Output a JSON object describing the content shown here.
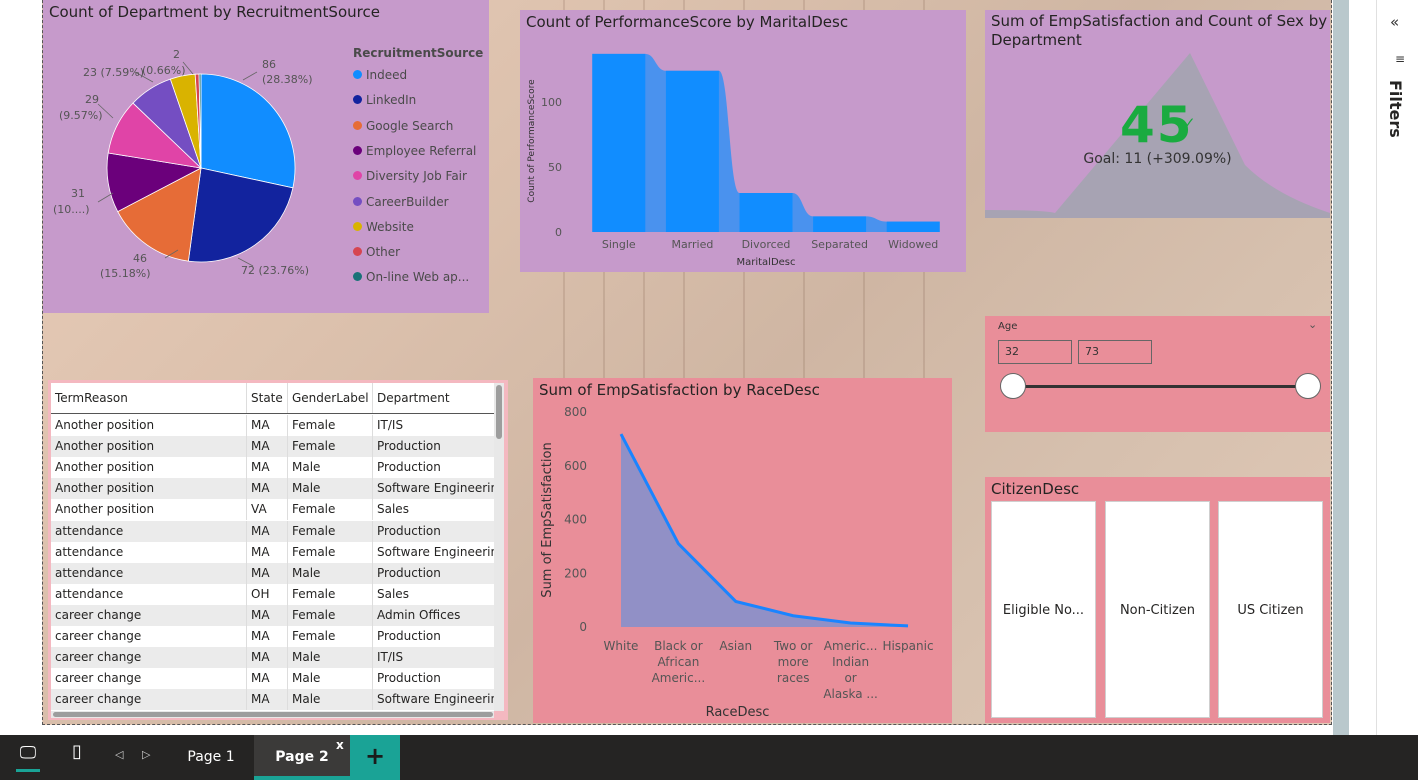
{
  "pie_tile": {
    "title": "Count of Department by RecruitmentSource",
    "legend_title": "RecruitmentSource",
    "labels": [
      "86",
      "(28.38%)",
      "72 (23.76%)",
      "46",
      "(15.18%)",
      "31",
      "(10....)",
      "29",
      "(9.57%)",
      "23 (7.59%)",
      "2",
      "(0.66%)"
    ]
  },
  "bar_tile": {
    "title": "Count of PerformanceScore by MaritalDesc"
  },
  "kpi_tile": {
    "title_line1": "Sum of EmpSatisfaction and Count of Sex by",
    "title_line2": "Department",
    "value": "45",
    "check": "✓",
    "goal": "Goal: 11 (+309.09%)"
  },
  "table": {
    "columns": [
      "TermReason",
      "State",
      "GenderLabel",
      "Department"
    ],
    "rows": [
      [
        "Another position",
        "MA",
        "Female",
        "IT/IS"
      ],
      [
        "Another position",
        "MA",
        "Female",
        "Production"
      ],
      [
        "Another position",
        "MA",
        "Male",
        "Production"
      ],
      [
        "Another position",
        "MA",
        "Male",
        "Software Engineering"
      ],
      [
        "Another position",
        "VA",
        "Female",
        "Sales"
      ],
      [
        "attendance",
        "MA",
        "Female",
        "Production"
      ],
      [
        "attendance",
        "MA",
        "Female",
        "Software Engineering"
      ],
      [
        "attendance",
        "MA",
        "Male",
        "Production"
      ],
      [
        "attendance",
        "OH",
        "Female",
        "Sales"
      ],
      [
        "career change",
        "MA",
        "Female",
        "Admin Offices"
      ],
      [
        "career change",
        "MA",
        "Female",
        "Production"
      ],
      [
        "career change",
        "MA",
        "Male",
        "IT/IS"
      ],
      [
        "career change",
        "MA",
        "Male",
        "Production"
      ],
      [
        "career change",
        "MA",
        "Male",
        "Software Engineering"
      ]
    ]
  },
  "area_tile": {
    "title": "Sum of EmpSatisfaction by RaceDesc"
  },
  "age_slicer": {
    "label": "Age",
    "chevron": "⌄",
    "min": "32",
    "max": "73",
    "range_min": 32,
    "range_max": 73
  },
  "citizen_slicer": {
    "title": "CitizenDesc",
    "options": [
      "Eligible No...",
      "Non-Citizen",
      "US Citizen"
    ]
  },
  "filters_pane": {
    "collapse_icon": "«",
    "filter_icon": "≡",
    "label": "Filters"
  },
  "bottom_bar": {
    "tabs": [
      "Page 1",
      "Page 2"
    ],
    "close": "x",
    "add": "+",
    "prev": "◁",
    "next": "▷",
    "desktop_icon": "🖵",
    "mobile_icon": "▯"
  },
  "colors": {
    "tile_purple": "#c69acb",
    "tile_pink": "#e98e99",
    "accent_teal": "#1aa396",
    "kpi_green": "#1aab40",
    "bar_blue": "#118dff",
    "line_blue": "#1a84ff"
  },
  "chart_data": [
    {
      "type": "pie",
      "title": "Count of Department by RecruitmentSource",
      "legend_title": "RecruitmentSource",
      "legend_placement": "right",
      "categories": [
        "Indeed",
        "LinkedIn",
        "Google Search",
        "Employee Referral",
        "Diversity Job Fair",
        "CareerBuilder",
        "Website",
        "Other",
        "On-line Web ap..."
      ],
      "values": [
        86,
        72,
        46,
        31,
        29,
        23,
        13,
        2,
        1
      ],
      "colors": [
        "#118dff",
        "#12239e",
        "#e66c37",
        "#6b007b",
        "#e044a7",
        "#744ec2",
        "#d9b300",
        "#d64550",
        "#197278"
      ]
    },
    {
      "type": "bar",
      "title": "Count of PerformanceScore by MaritalDesc",
      "xlabel": "MaritalDesc",
      "ylabel": "Count of PerformanceScore",
      "categories": [
        "Single",
        "Married",
        "Divorced",
        "Separated",
        "Widowed"
      ],
      "values": [
        137,
        124,
        30,
        12,
        8
      ],
      "ylim": [
        0,
        140
      ],
      "yticks": [
        0,
        50,
        100
      ],
      "grid": false
    },
    {
      "type": "area",
      "title": "Sum of EmpSatisfaction by RaceDesc",
      "xlabel": "RaceDesc",
      "ylabel": "Sum of EmpSatisfaction",
      "categories": [
        "White",
        "Black or African Americ...",
        "Asian",
        "Two or more races",
        "Americ... Indian or Alaska ...",
        "Hispanic"
      ],
      "category_lines": [
        [
          "White"
        ],
        [
          "Black or",
          "African",
          "Americ..."
        ],
        [
          "Asian"
        ],
        [
          "Two or",
          "more",
          "races"
        ],
        [
          "Americ...",
          "Indian",
          "or",
          "Alaska ..."
        ],
        [
          "Hispanic"
        ]
      ],
      "values": [
        718,
        310,
        95,
        42,
        15,
        4
      ],
      "ylim": [
        0,
        800
      ],
      "yticks": [
        0,
        200,
        400,
        600,
        800
      ],
      "grid": false
    }
  ]
}
